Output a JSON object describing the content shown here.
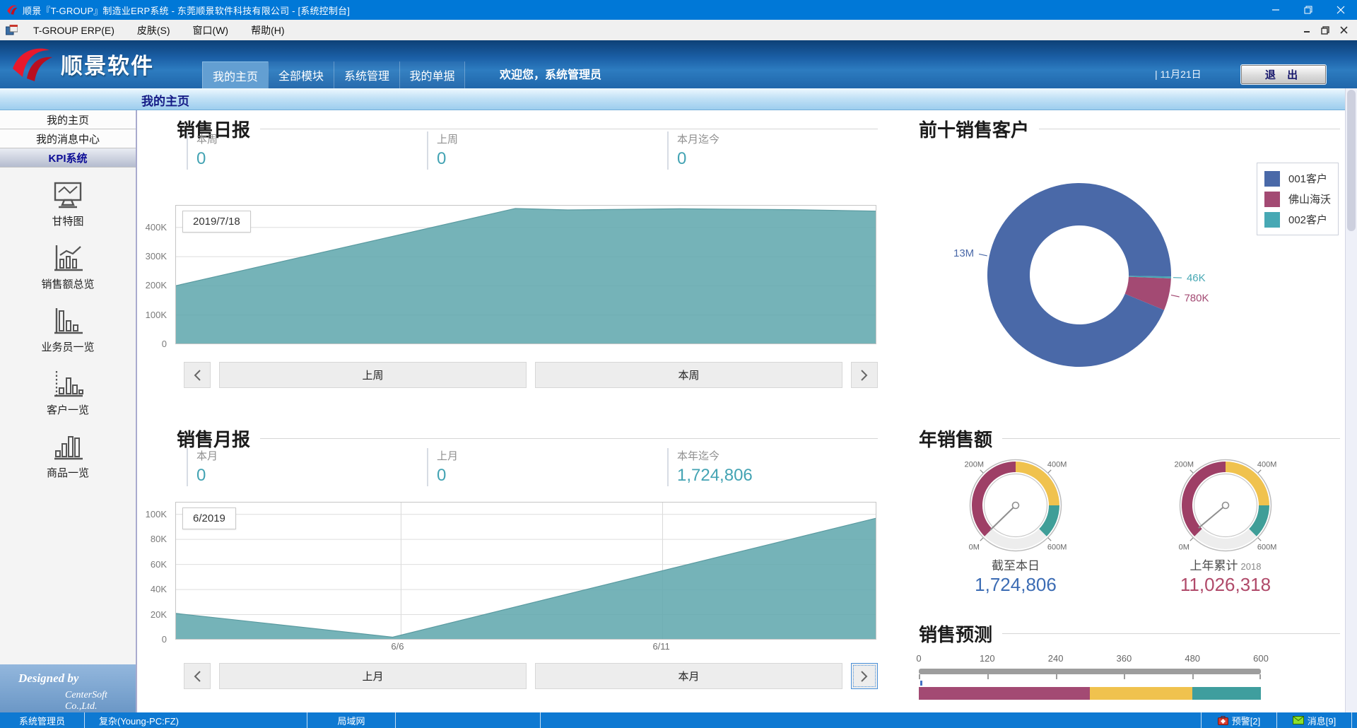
{
  "window": {
    "title": "顺景『T-GROUP』制造业ERP系统 - 东莞顺景软件科技有限公司 - [系统控制台]"
  },
  "menu_bar": {
    "items": [
      {
        "label": "T-GROUP ERP(E)"
      },
      {
        "label": "皮肤(S)"
      },
      {
        "label": "窗口(W)"
      },
      {
        "label": "帮助(H)"
      }
    ]
  },
  "nav": {
    "logo_text": "顺景软件",
    "tabs": [
      {
        "label": "我的主页",
        "active": true
      },
      {
        "label": "全部模块",
        "active": false
      },
      {
        "label": "系统管理",
        "active": false
      },
      {
        "label": "我的单据",
        "active": false
      }
    ],
    "welcome": "欢迎您，系统管理员",
    "date": "11月21日",
    "exit_label": "退 出"
  },
  "breadcrumb": "我的主页",
  "sidebar": {
    "items": [
      {
        "label": "我的主页",
        "selected": false
      },
      {
        "label": "我的消息中心",
        "selected": false
      },
      {
        "label": "KPI系统",
        "selected": true
      }
    ],
    "kpi_links": [
      {
        "label": "甘特图",
        "icon": "gantt-monitor-icon"
      },
      {
        "label": "销售额总览",
        "icon": "sales-trend-icon"
      },
      {
        "label": "业务员一览",
        "icon": "salesman-bars-icon"
      },
      {
        "label": "客户一览",
        "icon": "customer-bars-icon"
      },
      {
        "label": "商品一览",
        "icon": "product-bars-icon"
      }
    ],
    "designed_by": "Designed by",
    "company": "CenterSoft Co.,Ltd."
  },
  "daily": {
    "title": "销售日报",
    "stats": [
      {
        "label": "本周",
        "value": "0"
      },
      {
        "label": "上周",
        "value": "0"
      },
      {
        "label": "本月迄今",
        "value": "0"
      }
    ],
    "buttons": {
      "prev_icon": "chevron-left",
      "prev": "上周",
      "next": "本周",
      "next_icon": "chevron-right"
    }
  },
  "monthly": {
    "title": "销售月报",
    "stats": [
      {
        "label": "本月",
        "value": "0"
      },
      {
        "label": "上月",
        "value": "0"
      },
      {
        "label": "本年迄今",
        "value": "1,724,806"
      }
    ],
    "buttons": {
      "prev_icon": "chevron-left",
      "prev": "上月",
      "next": "本月",
      "next_icon": "chevron-right"
    }
  },
  "customers": {
    "title": "前十销售客户",
    "legend": [
      {
        "label": "001客户",
        "color": "#4a69a8"
      },
      {
        "label": "佛山海沃",
        "color": "#a34a73"
      },
      {
        "label": "002客户",
        "color": "#47a8b4"
      }
    ]
  },
  "annual": {
    "title": "年销售额",
    "gauges": [
      {
        "caption": "截至本日",
        "year": "",
        "value_display": "1,724,806",
        "value_color": "#3c6cb4"
      },
      {
        "caption": "上年累计",
        "year": "2018",
        "value_display": "11,026,318",
        "value_color": "#b04a6a"
      }
    ]
  },
  "forecast": {
    "title": "销售预测"
  },
  "status_bar": {
    "user": "系统管理员",
    "machine": "复杂(Young-PC:FZ)",
    "network": "局域网",
    "alerts": {
      "label": "预警[2]",
      "icon": "first-aid-icon"
    },
    "messages": {
      "label": "消息[9]",
      "icon": "envelope-icon"
    }
  },
  "chart_data": [
    {
      "id": "daily_area",
      "type": "area",
      "title": "销售日报",
      "tooltip": "2019/7/18",
      "fill": "#62a8ae",
      "ylim": [
        0,
        477000
      ],
      "yticks": [
        {
          "v": 400000,
          "label": "400K"
        },
        {
          "v": 300000,
          "label": "300K"
        },
        {
          "v": 200000,
          "label": "200K"
        },
        {
          "v": 100000,
          "label": "100K"
        },
        {
          "v": 0,
          "label": "0"
        }
      ],
      "xticks": [],
      "points": [
        [
          0,
          200000
        ],
        [
          0.485,
          465000
        ],
        [
          0.56,
          460000
        ],
        [
          0.72,
          464000
        ],
        [
          0.88,
          461000
        ],
        [
          1,
          456000
        ]
      ]
    },
    {
      "id": "monthly_area",
      "type": "area",
      "title": "销售月报",
      "tooltip": "6/2019",
      "fill": "#62a8ae",
      "ylim": [
        0,
        110000
      ],
      "yticks": [
        {
          "v": 100000,
          "label": "100K"
        },
        {
          "v": 80000,
          "label": "80K"
        },
        {
          "v": 60000,
          "label": "60K"
        },
        {
          "v": 40000,
          "label": "40K"
        },
        {
          "v": 20000,
          "label": "20K"
        },
        {
          "v": 0,
          "label": "0"
        }
      ],
      "xticks": [
        {
          "frac": 0.322,
          "label": "6/6"
        },
        {
          "frac": 0.695,
          "label": "6/11"
        }
      ],
      "points": [
        [
          0,
          21000
        ],
        [
          0.31,
          2000
        ],
        [
          1,
          97000
        ]
      ]
    },
    {
      "id": "customers_donut",
      "type": "donut",
      "title": "前十销售客户",
      "start_angle": 91,
      "segments": [
        {
          "label": "002客户",
          "value": 46000,
          "display": "46K",
          "color": "#47a8b4"
        },
        {
          "label": "佛山海沃",
          "value": 780000,
          "display": "780K",
          "color": "#a34a73"
        },
        {
          "label": "001客户",
          "value": 13000000,
          "display": "13M",
          "color": "#4a69a8"
        }
      ]
    },
    {
      "id": "gauge_today",
      "type": "gauge",
      "caption": "截至本日",
      "min": 0,
      "max": 600000000,
      "start_angle": 225,
      "span": 270,
      "bands": [
        {
          "to": 300000000,
          "color": "#9e3f66"
        },
        {
          "to": 500000000,
          "color": "#f0c24e"
        },
        {
          "to": 600000000,
          "color": "#3f9e98"
        }
      ],
      "gap_color": "#ededed",
      "ticks": [
        {
          "v": 0,
          "label": "0M"
        },
        {
          "v": 200000000,
          "label": "200M"
        },
        {
          "v": 400000000,
          "label": "400M"
        },
        {
          "v": 600000000,
          "label": "600M"
        }
      ],
      "value": 1724806
    },
    {
      "id": "gauge_last_year",
      "type": "gauge",
      "caption": "上年累计 2018",
      "min": 0,
      "max": 600000000,
      "start_angle": 225,
      "span": 270,
      "bands": [
        {
          "to": 300000000,
          "color": "#9e3f66"
        },
        {
          "to": 500000000,
          "color": "#f0c24e"
        },
        {
          "to": 600000000,
          "color": "#3f9e98"
        }
      ],
      "gap_color": "#ededed",
      "ticks": [
        {
          "v": 0,
          "label": "0M"
        },
        {
          "v": 200000000,
          "label": "200M"
        },
        {
          "v": 400000000,
          "label": "400M"
        },
        {
          "v": 600000000,
          "label": "600M"
        }
      ],
      "value": 11026318
    },
    {
      "id": "forecast_bullet",
      "type": "bullet",
      "title": "销售预测",
      "min": 0,
      "max": 600,
      "axis_ticks": [
        0,
        120,
        240,
        360,
        480,
        600
      ],
      "bands": [
        {
          "from": 0,
          "to": 300,
          "color": "#a34a73"
        },
        {
          "from": 300,
          "to": 480,
          "color": "#f0c24e"
        },
        {
          "from": 480,
          "to": 600,
          "color": "#3f9e9e"
        }
      ],
      "marker": {
        "value": 2,
        "color": "#4472c4"
      }
    }
  ]
}
